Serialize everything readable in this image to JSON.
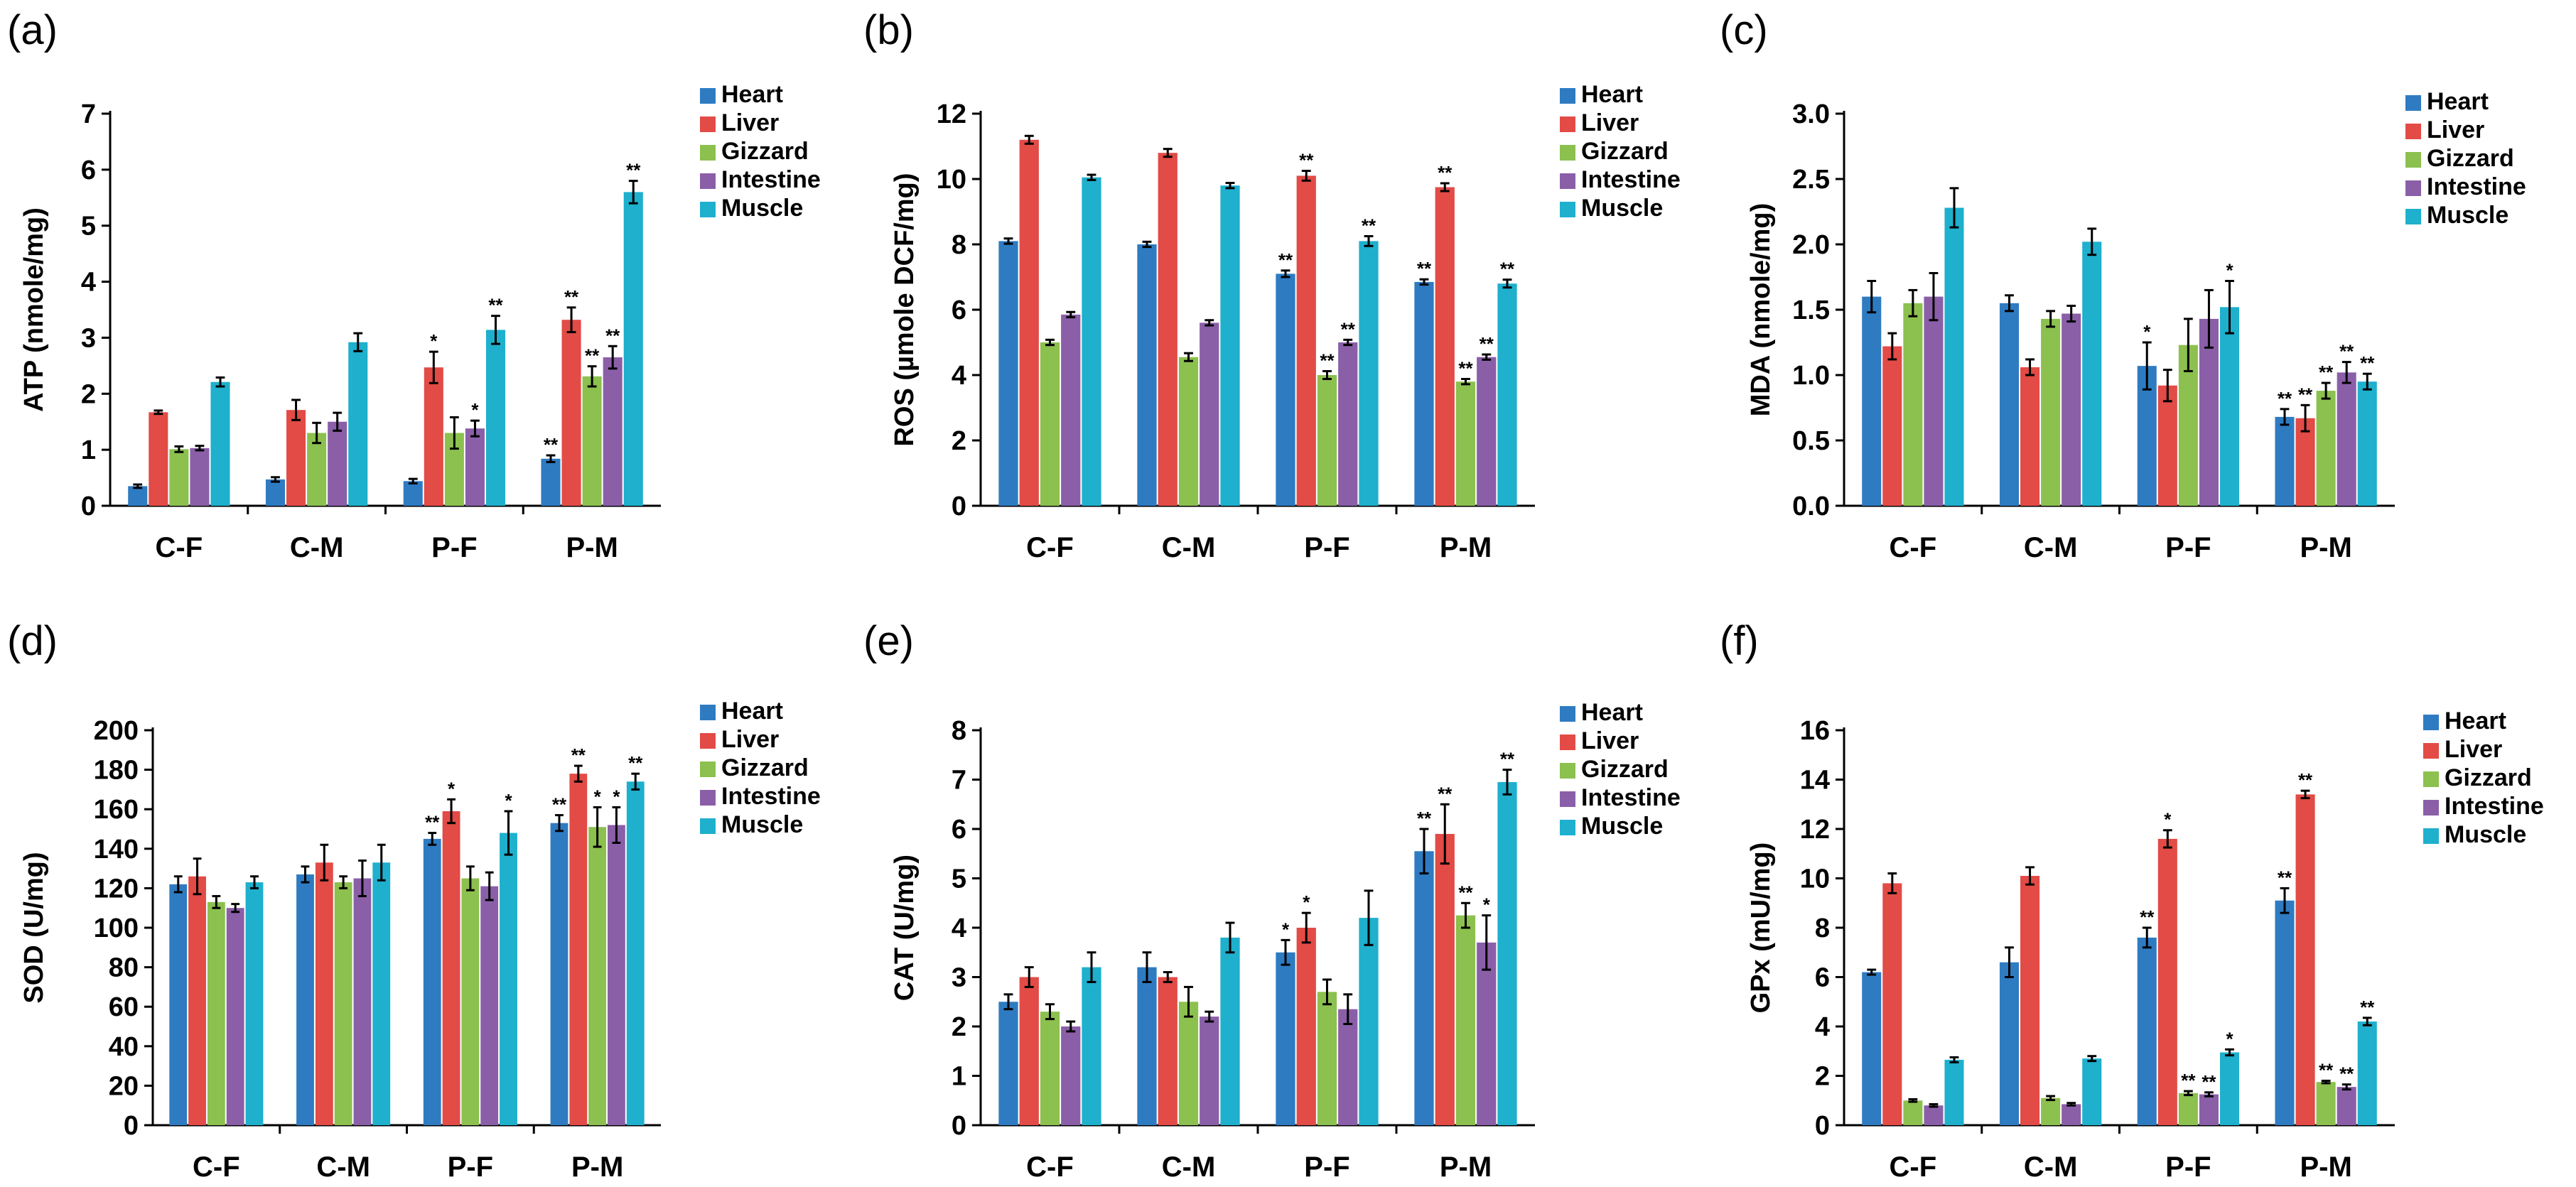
{
  "colors": {
    "Heart": "#2E7BC2",
    "Liver": "#E24B46",
    "Gizzard": "#8CC04F",
    "Intestine": "#8A5FA8",
    "Muscle": "#1EB0CD"
  },
  "chart_data": [
    {
      "type": "bar",
      "panel": "(a)",
      "title": "",
      "xlabel": "",
      "ylabel": "ATP (nmole/mg)",
      "ylim": [
        0,
        7
      ],
      "yticks": [
        "0",
        "1",
        "2",
        "3",
        "4",
        "5",
        "6",
        "7"
      ],
      "categories": [
        "C-F",
        "C-M",
        "P-F",
        "P-M"
      ],
      "series": [
        {
          "name": "Heart",
          "values": [
            0.35,
            0.47,
            0.44,
            0.84
          ],
          "errors": [
            0.03,
            0.04,
            0.04,
            0.06
          ],
          "sig": [
            "",
            "",
            "",
            "**"
          ]
        },
        {
          "name": "Liver",
          "values": [
            1.67,
            1.71,
            2.47,
            3.32
          ],
          "errors": [
            0.03,
            0.18,
            0.28,
            0.22
          ],
          "sig": [
            "",
            "",
            "*",
            "**"
          ]
        },
        {
          "name": "Gizzard",
          "values": [
            1.01,
            1.3,
            1.3,
            2.31
          ],
          "errors": [
            0.05,
            0.18,
            0.28,
            0.18
          ],
          "sig": [
            "",
            "",
            "",
            "**"
          ]
        },
        {
          "name": "Intestine",
          "values": [
            1.03,
            1.5,
            1.38,
            2.65
          ],
          "errors": [
            0.04,
            0.16,
            0.14,
            0.2
          ],
          "sig": [
            "",
            "",
            "*",
            "**"
          ]
        },
        {
          "name": "Muscle",
          "values": [
            2.21,
            2.92,
            3.14,
            5.6
          ],
          "errors": [
            0.08,
            0.16,
            0.25,
            0.2
          ],
          "sig": [
            "",
            "",
            "**",
            "**"
          ]
        }
      ]
    },
    {
      "type": "bar",
      "panel": "(b)",
      "title": "",
      "xlabel": "",
      "ylabel": "ROS (µmole DCF/mg)",
      "ylim": [
        0,
        12
      ],
      "yticks": [
        "0",
        "2",
        "4",
        "6",
        "8",
        "10",
        "12"
      ],
      "categories": [
        "C-F",
        "C-M",
        "P-F",
        "P-M"
      ],
      "series": [
        {
          "name": "Heart",
          "values": [
            8.1,
            8.0,
            7.1,
            6.85
          ],
          "errors": [
            0.08,
            0.08,
            0.1,
            0.08
          ],
          "sig": [
            "",
            "",
            "**",
            "**"
          ]
        },
        {
          "name": "Liver",
          "values": [
            11.2,
            10.8,
            10.1,
            9.75
          ],
          "errors": [
            0.12,
            0.12,
            0.15,
            0.12
          ],
          "sig": [
            "",
            "",
            "**",
            "**"
          ]
        },
        {
          "name": "Gizzard",
          "values": [
            5.0,
            4.55,
            4.0,
            3.8
          ],
          "errors": [
            0.08,
            0.12,
            0.12,
            0.08
          ],
          "sig": [
            "",
            "",
            "**",
            "**"
          ]
        },
        {
          "name": "Intestine",
          "values": [
            5.85,
            5.6,
            5.0,
            4.55
          ],
          "errors": [
            0.08,
            0.08,
            0.08,
            0.08
          ],
          "sig": [
            "",
            "",
            "**",
            "**"
          ]
        },
        {
          "name": "Muscle",
          "values": [
            10.05,
            9.8,
            8.1,
            6.8
          ],
          "errors": [
            0.08,
            0.08,
            0.15,
            0.12
          ],
          "sig": [
            "",
            "",
            "**",
            "**"
          ]
        }
      ]
    },
    {
      "type": "bar",
      "panel": "(c)",
      "title": "",
      "xlabel": "",
      "ylabel": "MDA (nmole/mg)",
      "ylim": [
        0,
        3
      ],
      "yticks": [
        "0.0",
        "0.5",
        "1.0",
        "1.5",
        "2.0",
        "2.5",
        "3.0"
      ],
      "categories": [
        "C-F",
        "C-M",
        "P-F",
        "P-M"
      ],
      "series": [
        {
          "name": "Heart",
          "values": [
            1.6,
            1.55,
            1.07,
            0.68
          ],
          "errors": [
            0.12,
            0.06,
            0.18,
            0.06
          ],
          "sig": [
            "",
            "",
            "*",
            "**"
          ]
        },
        {
          "name": "Liver",
          "values": [
            1.22,
            1.06,
            0.92,
            0.67
          ],
          "errors": [
            0.1,
            0.06,
            0.12,
            0.1
          ],
          "sig": [
            "",
            "",
            "",
            "**"
          ]
        },
        {
          "name": "Gizzard",
          "values": [
            1.55,
            1.43,
            1.23,
            0.88
          ],
          "errors": [
            0.1,
            0.06,
            0.2,
            0.06
          ],
          "sig": [
            "",
            "",
            "",
            "**"
          ]
        },
        {
          "name": "Intestine",
          "values": [
            1.6,
            1.47,
            1.43,
            1.02
          ],
          "errors": [
            0.18,
            0.06,
            0.22,
            0.08
          ],
          "sig": [
            "",
            "",
            "",
            "**"
          ]
        },
        {
          "name": "Muscle",
          "values": [
            2.28,
            2.02,
            1.52,
            0.95
          ],
          "errors": [
            0.15,
            0.1,
            0.2,
            0.06
          ],
          "sig": [
            "",
            "",
            "*",
            "**"
          ]
        }
      ]
    },
    {
      "type": "bar",
      "panel": "(d)",
      "title": "",
      "xlabel": "",
      "ylabel": "SOD (U/mg)",
      "ylim": [
        0,
        200
      ],
      "yticks": [
        "0",
        "20",
        "40",
        "60",
        "80",
        "100",
        "120",
        "140",
        "160",
        "180",
        "200"
      ],
      "categories": [
        "C-F",
        "C-M",
        "P-F",
        "P-M"
      ],
      "series": [
        {
          "name": "Heart",
          "values": [
            122,
            127,
            145,
            153
          ],
          "errors": [
            4,
            4,
            3,
            4
          ],
          "sig": [
            "",
            "",
            "**",
            "**"
          ]
        },
        {
          "name": "Liver",
          "values": [
            126,
            133,
            159,
            178
          ],
          "errors": [
            9,
            9,
            6,
            4
          ],
          "sig": [
            "",
            "",
            "*",
            "**"
          ]
        },
        {
          "name": "Gizzard",
          "values": [
            113,
            123,
            125,
            151
          ],
          "errors": [
            3,
            3,
            6,
            10
          ],
          "sig": [
            "",
            "",
            "",
            "*"
          ]
        },
        {
          "name": "Intestine",
          "values": [
            110,
            125,
            121,
            152
          ],
          "errors": [
            2,
            9,
            7,
            9
          ],
          "sig": [
            "",
            "",
            "",
            "*"
          ]
        },
        {
          "name": "Muscle",
          "values": [
            123,
            133,
            148,
            174
          ],
          "errors": [
            3,
            9,
            11,
            4
          ],
          "sig": [
            "",
            "",
            "*",
            "**"
          ]
        }
      ]
    },
    {
      "type": "bar",
      "panel": "(e)",
      "title": "",
      "xlabel": "",
      "ylabel": "CAT (U/mg)",
      "ylim": [
        0,
        8
      ],
      "yticks": [
        "0",
        "1",
        "2",
        "3",
        "4",
        "5",
        "6",
        "7",
        "8"
      ],
      "categories": [
        "C-F",
        "C-M",
        "P-F",
        "P-M"
      ],
      "series": [
        {
          "name": "Heart",
          "values": [
            2.5,
            3.2,
            3.5,
            5.55
          ],
          "errors": [
            0.15,
            0.3,
            0.25,
            0.45
          ],
          "sig": [
            "",
            "",
            "*",
            "**"
          ]
        },
        {
          "name": "Liver",
          "values": [
            3.0,
            3.0,
            4.0,
            5.9
          ],
          "errors": [
            0.2,
            0.1,
            0.3,
            0.6
          ],
          "sig": [
            "",
            "",
            "*",
            "**"
          ]
        },
        {
          "name": "Gizzard",
          "values": [
            2.3,
            2.5,
            2.7,
            4.25
          ],
          "errors": [
            0.15,
            0.3,
            0.25,
            0.25
          ],
          "sig": [
            "",
            "",
            "",
            "**"
          ]
        },
        {
          "name": "Intestine",
          "values": [
            2.0,
            2.2,
            2.35,
            3.7
          ],
          "errors": [
            0.1,
            0.1,
            0.3,
            0.55
          ],
          "sig": [
            "",
            "",
            "",
            "*"
          ]
        },
        {
          "name": "Muscle",
          "values": [
            3.2,
            3.8,
            4.2,
            6.95
          ],
          "errors": [
            0.3,
            0.3,
            0.55,
            0.25
          ],
          "sig": [
            "",
            "",
            "",
            "**"
          ]
        }
      ]
    },
    {
      "type": "bar",
      "panel": "(f)",
      "title": "",
      "xlabel": "",
      "ylabel": "GPx (mU/mg)",
      "ylim": [
        0,
        16
      ],
      "yticks": [
        "0",
        "2",
        "4",
        "6",
        "8",
        "10",
        "12",
        "14",
        "16"
      ],
      "categories": [
        "C-F",
        "C-M",
        "P-F",
        "P-M"
      ],
      "series": [
        {
          "name": "Heart",
          "values": [
            6.2,
            6.6,
            7.6,
            9.1
          ],
          "errors": [
            0.1,
            0.6,
            0.4,
            0.5
          ],
          "sig": [
            "",
            "",
            "**",
            "**"
          ]
        },
        {
          "name": "Liver",
          "values": [
            9.8,
            10.1,
            11.6,
            13.4
          ],
          "errors": [
            0.4,
            0.35,
            0.35,
            0.15
          ],
          "sig": [
            "",
            "",
            "*",
            "**"
          ]
        },
        {
          "name": "Gizzard",
          "values": [
            1.0,
            1.1,
            1.3,
            1.75
          ],
          "errors": [
            0.05,
            0.08,
            0.08,
            0.05
          ],
          "sig": [
            "",
            "",
            "**",
            "**"
          ]
        },
        {
          "name": "Intestine",
          "values": [
            0.8,
            0.85,
            1.25,
            1.55
          ],
          "errors": [
            0.05,
            0.05,
            0.08,
            0.1
          ],
          "sig": [
            "",
            "",
            "**",
            "**"
          ]
        },
        {
          "name": "Muscle",
          "values": [
            2.65,
            2.7,
            2.95,
            4.2
          ],
          "errors": [
            0.1,
            0.1,
            0.12,
            0.15
          ],
          "sig": [
            "",
            "",
            "*",
            "**"
          ]
        }
      ]
    }
  ]
}
